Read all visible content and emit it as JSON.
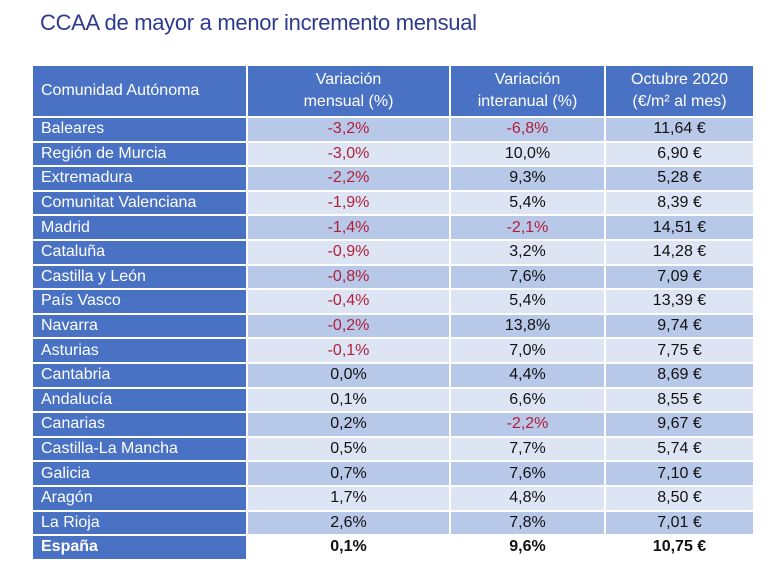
{
  "title": "CCAA de mayor a menor incremento mensual",
  "colors": {
    "title": "#2e3a8c",
    "header_bg": "#4a72c4",
    "row_dark": "#b8c8e8",
    "row_light": "#dde5f4",
    "negative": "#b0203a"
  },
  "table": {
    "headers": [
      [
        "Comunidad Autónoma"
      ],
      [
        "Variación",
        "mensual (%)"
      ],
      [
        "Variación",
        "interanual (%)"
      ],
      [
        "Octubre 2020",
        "(€/m² al mes)"
      ]
    ],
    "rows": [
      [
        "Baleares",
        "-3,2%",
        "-6,8%",
        "11,64 €"
      ],
      [
        "Región de Murcia",
        "-3,0%",
        "10,0%",
        "6,90 €"
      ],
      [
        "Extremadura",
        "-2,2%",
        "9,3%",
        "5,28 €"
      ],
      [
        "Comunitat Valenciana",
        "-1,9%",
        "5,4%",
        "8,39 €"
      ],
      [
        "Madrid",
        "-1,4%",
        "-2,1%",
        "14,51 €"
      ],
      [
        "Cataluña",
        "-0,9%",
        "3,2%",
        "14,28 €"
      ],
      [
        "Castilla y León",
        "-0,8%",
        "7,6%",
        "7,09 €"
      ],
      [
        "País Vasco",
        "-0,4%",
        "5,4%",
        "13,39 €"
      ],
      [
        "Navarra",
        "-0,2%",
        "13,8%",
        "9,74 €"
      ],
      [
        "Asturias",
        "-0,1%",
        "7,0%",
        "7,75 €"
      ],
      [
        "Cantabria",
        "0,0%",
        "4,4%",
        "8,69 €"
      ],
      [
        "Andalucía",
        "0,1%",
        "6,6%",
        "8,55 €"
      ],
      [
        "Canarias",
        "0,2%",
        "-2,2%",
        "9,67 €"
      ],
      [
        "Castilla-La Mancha",
        "0,5%",
        "7,7%",
        "5,74 €"
      ],
      [
        "Galicia",
        "0,7%",
        "7,6%",
        "7,10 €"
      ],
      [
        "Aragón",
        "1,7%",
        "4,8%",
        "8,50 €"
      ],
      [
        "La Rioja",
        "2,6%",
        "7,8%",
        "7,01 €"
      ]
    ],
    "total": [
      "España",
      "0,1%",
      "9,6%",
      "10,75 €"
    ]
  }
}
